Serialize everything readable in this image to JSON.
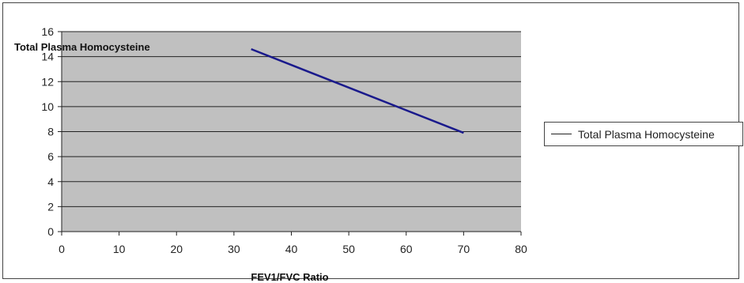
{
  "chart_data": {
    "type": "line",
    "title": "",
    "xlabel": "FEV1/FVC Ratio",
    "ylabel": "Total Plasma Homocysteine",
    "xlim": [
      0,
      80
    ],
    "ylim": [
      0,
      16
    ],
    "x_ticks": [
      0,
      10,
      20,
      30,
      40,
      50,
      60,
      70,
      80
    ],
    "y_ticks": [
      0,
      2,
      4,
      6,
      8,
      10,
      12,
      14,
      16
    ],
    "grid": "horizontal",
    "legend_position": "right",
    "series": [
      {
        "name": "Total Plasma Homocysteine",
        "color": "#1a1a8c",
        "x": [
          33,
          70
        ],
        "y": [
          14.6,
          7.9
        ]
      }
    ],
    "colors": {
      "plot_background": "#c0c0c0",
      "grid": "#222222",
      "line": "#1a1a8c"
    }
  }
}
